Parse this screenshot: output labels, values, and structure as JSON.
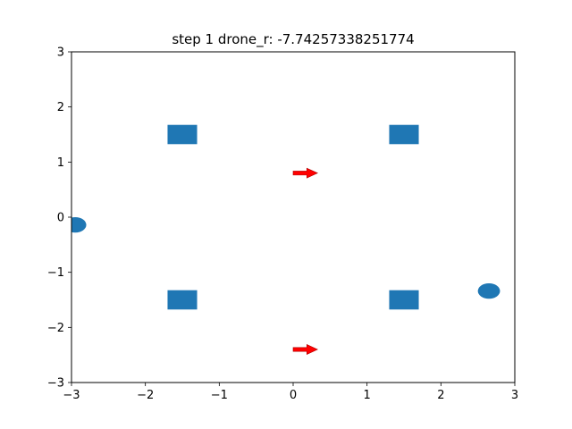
{
  "chart_data": {
    "type": "scatter",
    "title": "step 1 drone_r: -7.74257338251774",
    "xlabel": "",
    "ylabel": "",
    "xlim": [
      -3,
      3
    ],
    "ylim": [
      -3,
      3
    ],
    "xticks": [
      -3,
      -2,
      -1,
      0,
      1,
      2,
      3
    ],
    "yticks": [
      -3,
      -2,
      -1,
      0,
      1,
      2,
      3
    ],
    "xtick_labels": [
      "−3",
      "−2",
      "−1",
      "0",
      "1",
      "2",
      "3"
    ],
    "ytick_labels": [
      "−3",
      "−2",
      "−1",
      "0",
      "1",
      "2",
      "3"
    ],
    "grid": false,
    "squares": {
      "color": "#1f77b4",
      "width": 0.4,
      "height": 0.35,
      "points": [
        {
          "x": -1.5,
          "y": 1.5
        },
        {
          "x": 1.5,
          "y": 1.5
        },
        {
          "x": -1.5,
          "y": -1.5
        },
        {
          "x": 1.5,
          "y": -1.5
        }
      ]
    },
    "ellipses": {
      "color": "#1f77b4",
      "rx": 0.15,
      "ry": 0.14,
      "points": [
        {
          "x": -2.95,
          "y": -0.14
        },
        {
          "x": 2.65,
          "y": -1.34
        }
      ]
    },
    "arrows": {
      "color": "#ff0000",
      "edge_color": "#b00000",
      "points": [
        {
          "x": 0.0,
          "y": 0.8,
          "dx": 0.33,
          "dy": 0.0
        },
        {
          "x": 0.0,
          "y": -2.4,
          "dx": 0.33,
          "dy": 0.0
        }
      ]
    }
  }
}
